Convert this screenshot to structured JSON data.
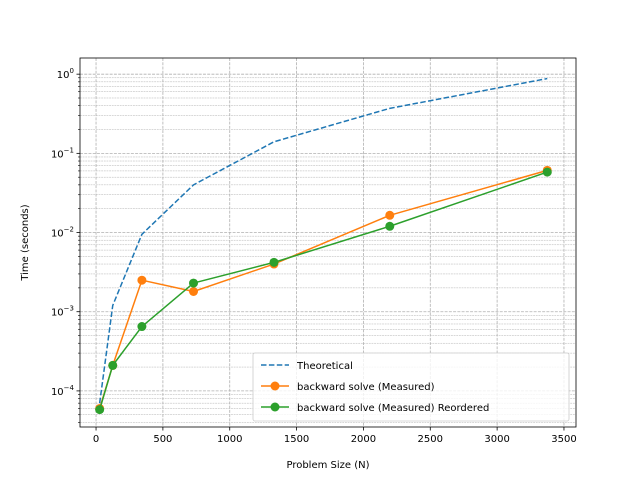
{
  "chart_data": {
    "type": "line",
    "title": "",
    "xlabel": "Problem Size (N)",
    "ylabel": "Time (seconds)",
    "xlim": [
      -120,
      3590
    ],
    "ylim": [
      3.5e-05,
      1.6
    ],
    "yscale": "log",
    "grid": true,
    "legend_position": "lower-right",
    "x_ticks": [
      {
        "value": 0,
        "label": "0"
      },
      {
        "value": 500,
        "label": "500"
      },
      {
        "value": 1000,
        "label": "1000"
      },
      {
        "value": 1500,
        "label": "1500"
      },
      {
        "value": 2000,
        "label": "2000"
      },
      {
        "value": 2500,
        "label": "2500"
      },
      {
        "value": 3000,
        "label": "3000"
      },
      {
        "value": 3500,
        "label": "3500"
      }
    ],
    "y_ticks": [
      {
        "value": 0.0001,
        "label": "10",
        "exp": "−4"
      },
      {
        "value": 0.001,
        "label": "10",
        "exp": "−3"
      },
      {
        "value": 0.01,
        "label": "10",
        "exp": "−2"
      },
      {
        "value": 0.1,
        "label": "10",
        "exp": "−1"
      },
      {
        "value": 1,
        "label": "10",
        "exp": "0"
      }
    ],
    "series": [
      {
        "name": "Theoretical",
        "color": "#1f77b4",
        "style": "dashed",
        "marker": "none",
        "x": [
          27,
          125,
          343,
          729,
          1331,
          2197,
          3375
        ],
        "y": [
          7e-05,
          0.0012,
          0.0095,
          0.04,
          0.14,
          0.37,
          0.88
        ]
      },
      {
        "name": "backward solve (Measured)",
        "color": "#ff7f0e",
        "style": "solid",
        "marker": "circle",
        "x": [
          27,
          125,
          343,
          729,
          1331,
          2197,
          3375
        ],
        "y": [
          6e-05,
          0.00021,
          0.0025,
          0.0018,
          0.004,
          0.0165,
          0.061
        ]
      },
      {
        "name": "backward solve (Measured) Reordered",
        "color": "#2ca02c",
        "style": "solid",
        "marker": "circle",
        "x": [
          27,
          125,
          343,
          729,
          1331,
          2197,
          3375
        ],
        "y": [
          5.8e-05,
          0.00021,
          0.00065,
          0.0023,
          0.0042,
          0.012,
          0.058
        ]
      }
    ]
  }
}
